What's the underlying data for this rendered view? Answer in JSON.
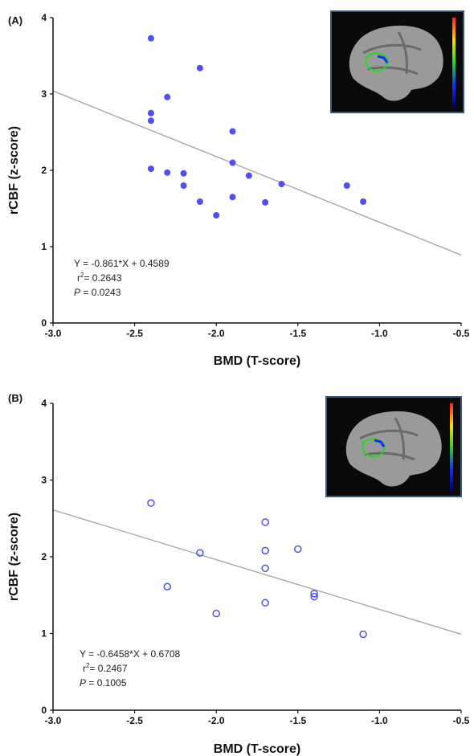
{
  "chart_data": [
    {
      "type": "scatter",
      "panel_label": "(A)",
      "xlabel": "BMD (T-score)",
      "ylabel": "rCBF (z-score)",
      "xlim": [
        -3.0,
        -0.5
      ],
      "ylim": [
        0,
        4
      ],
      "x_ticks": [
        "-3.0",
        "-2.5",
        "-2.0",
        "-1.5",
        "-1.0",
        "-0.5"
      ],
      "y_ticks": [
        "0",
        "1",
        "2",
        "3",
        "4"
      ],
      "marker": "filled",
      "point_color": "#4f4ff5",
      "fit_color": "#a8a8a8",
      "points": [
        {
          "x": -2.4,
          "y": 3.73
        },
        {
          "x": -2.1,
          "y": 3.34
        },
        {
          "x": -2.3,
          "y": 2.96
        },
        {
          "x": -2.4,
          "y": 2.75
        },
        {
          "x": -2.4,
          "y": 2.65
        },
        {
          "x": -1.9,
          "y": 2.51
        },
        {
          "x": -1.9,
          "y": 2.1
        },
        {
          "x": -2.4,
          "y": 2.02
        },
        {
          "x": -2.3,
          "y": 1.97
        },
        {
          "x": -2.2,
          "y": 1.96
        },
        {
          "x": -1.8,
          "y": 1.93
        },
        {
          "x": -1.6,
          "y": 1.82
        },
        {
          "x": -2.2,
          "y": 1.8
        },
        {
          "x": -1.2,
          "y": 1.8
        },
        {
          "x": -1.9,
          "y": 1.65
        },
        {
          "x": -2.1,
          "y": 1.59
        },
        {
          "x": -1.7,
          "y": 1.58
        },
        {
          "x": -1.1,
          "y": 1.59
        },
        {
          "x": -2.0,
          "y": 1.41
        }
      ],
      "fit_line": {
        "x": [
          -3.0,
          -0.5
        ],
        "y": [
          3.04,
          0.89
        ]
      },
      "equation": "Y = -0.861*X + 0.4589",
      "r2_label": "r",
      "r2_value": "=  0.2643",
      "p_label": "P",
      "p_value": " =  0.0243",
      "inset": "sagittal-brain-slice-with-color-scale"
    },
    {
      "type": "scatter",
      "panel_label": "(B)",
      "xlabel": "BMD (T-score)",
      "ylabel": "rCBF (z-score)",
      "xlim": [
        -3.0,
        -0.5
      ],
      "ylim": [
        0,
        4
      ],
      "x_ticks": [
        "-3.0",
        "-2.5",
        "-2.0",
        "-1.5",
        "-1.0",
        "-0.5"
      ],
      "y_ticks": [
        "0",
        "1",
        "2",
        "3",
        "4"
      ],
      "marker": "open",
      "point_color": "#4f4ff5",
      "fit_color": "#a8a8a8",
      "points": [
        {
          "x": -2.4,
          "y": 2.7
        },
        {
          "x": -1.7,
          "y": 2.45
        },
        {
          "x": -1.5,
          "y": 2.1
        },
        {
          "x": -1.7,
          "y": 2.08
        },
        {
          "x": -2.1,
          "y": 2.05
        },
        {
          "x": -1.7,
          "y": 1.85
        },
        {
          "x": -2.3,
          "y": 1.61
        },
        {
          "x": -1.4,
          "y": 1.52
        },
        {
          "x": -1.4,
          "y": 1.48
        },
        {
          "x": -1.7,
          "y": 1.4
        },
        {
          "x": -2.0,
          "y": 1.26
        },
        {
          "x": -1.1,
          "y": 0.99
        }
      ],
      "fit_line": {
        "x": [
          -3.0,
          -0.5
        ],
        "y": [
          2.61,
          0.99
        ]
      },
      "equation": "Y = -0.6458*X + 0.6708",
      "r2_label": "r",
      "r2_value": "=  0.2467",
      "p_label": "P",
      "p_value": " =  0.1005",
      "inset": "sagittal-brain-slice-with-color-scale"
    }
  ]
}
